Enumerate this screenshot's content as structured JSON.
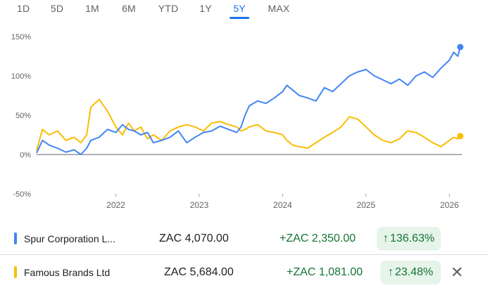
{
  "tabs": [
    {
      "label": "1D",
      "active": false
    },
    {
      "label": "5D",
      "active": false
    },
    {
      "label": "1M",
      "active": false
    },
    {
      "label": "6M",
      "active": false
    },
    {
      "label": "YTD",
      "active": false
    },
    {
      "label": "1Y",
      "active": false
    },
    {
      "label": "5Y",
      "active": true
    },
    {
      "label": "MAX",
      "active": false
    }
  ],
  "chart_data": {
    "type": "line",
    "y_ticks": [
      "150%",
      "100%",
      "50%",
      "0%",
      "-50%"
    ],
    "ylim": [
      -50,
      150
    ],
    "x_ticks": [
      "2022",
      "2023",
      "2024",
      "2025",
      "2026"
    ],
    "xlim": [
      2021.05,
      2026.15
    ],
    "zero_line": true,
    "grid": false,
    "series": [
      {
        "name": "Spur Corporation L...",
        "color": "#4285f4",
        "x": [
          2021.05,
          2021.12,
          2021.2,
          2021.3,
          2021.4,
          2021.5,
          2021.58,
          2021.65,
          2021.7,
          2021.8,
          2021.9,
          2022.0,
          2022.08,
          2022.15,
          2022.22,
          2022.3,
          2022.38,
          2022.45,
          2022.55,
          2022.65,
          2022.75,
          2022.85,
          2022.95,
          2023.05,
          2023.15,
          2023.25,
          2023.35,
          2023.45,
          2023.5,
          2023.55,
          2023.6,
          2023.7,
          2023.8,
          2023.9,
          2024.0,
          2024.05,
          2024.12,
          2024.2,
          2024.3,
          2024.4,
          2024.5,
          2024.6,
          2024.7,
          2024.8,
          2024.9,
          2025.0,
          2025.1,
          2025.2,
          2025.3,
          2025.4,
          2025.5,
          2025.6,
          2025.7,
          2025.8,
          2025.9,
          2026.0,
          2026.05,
          2026.1,
          2026.13
        ],
        "values": [
          2,
          18,
          12,
          8,
          3,
          6,
          0,
          8,
          18,
          22,
          32,
          28,
          38,
          32,
          30,
          25,
          28,
          15,
          18,
          22,
          30,
          15,
          22,
          28,
          30,
          36,
          32,
          28,
          35,
          50,
          62,
          68,
          65,
          72,
          80,
          88,
          82,
          75,
          72,
          68,
          85,
          80,
          90,
          100,
          105,
          108,
          100,
          95,
          90,
          96,
          88,
          100,
          105,
          98,
          110,
          120,
          130,
          125,
          136.63
        ]
      },
      {
        "name": "Famous Brands Ltd",
        "color": "#fbbc04",
        "x": [
          2021.05,
          2021.12,
          2021.2,
          2021.3,
          2021.4,
          2021.5,
          2021.58,
          2021.65,
          2021.7,
          2021.8,
          2021.9,
          2022.0,
          2022.08,
          2022.15,
          2022.22,
          2022.3,
          2022.38,
          2022.45,
          2022.55,
          2022.65,
          2022.75,
          2022.85,
          2022.95,
          2023.05,
          2023.15,
          2023.25,
          2023.35,
          2023.45,
          2023.5,
          2023.55,
          2023.6,
          2023.7,
          2023.8,
          2023.9,
          2024.0,
          2024.05,
          2024.12,
          2024.2,
          2024.3,
          2024.4,
          2024.5,
          2024.6,
          2024.7,
          2024.8,
          2024.9,
          2025.0,
          2025.1,
          2025.2,
          2025.3,
          2025.4,
          2025.5,
          2025.6,
          2025.7,
          2025.8,
          2025.9,
          2026.0,
          2026.05,
          2026.1,
          2026.13
        ],
        "values": [
          5,
          32,
          25,
          30,
          18,
          22,
          15,
          25,
          60,
          70,
          55,
          35,
          25,
          40,
          30,
          35,
          20,
          25,
          18,
          30,
          35,
          38,
          35,
          30,
          40,
          42,
          38,
          35,
          30,
          32,
          35,
          38,
          30,
          28,
          25,
          18,
          12,
          10,
          8,
          15,
          22,
          28,
          35,
          48,
          45,
          35,
          25,
          18,
          15,
          20,
          30,
          28,
          22,
          15,
          10,
          18,
          22,
          20,
          23.48
        ]
      }
    ]
  },
  "quotes": [
    {
      "name": "Spur Corporation L...",
      "color": "#4285f4",
      "price": "ZAC 4,070.00",
      "change": "+ZAC 2,350.00",
      "arrow": "↑",
      "pct": "136.63%"
    },
    {
      "name": "Famous Brands Ltd",
      "color": "#fbbc04",
      "price": "ZAC 5,684.00",
      "change": "+ZAC 1,081.00",
      "arrow": "↑",
      "pct": "23.48%",
      "close_icon": "✕"
    }
  ]
}
